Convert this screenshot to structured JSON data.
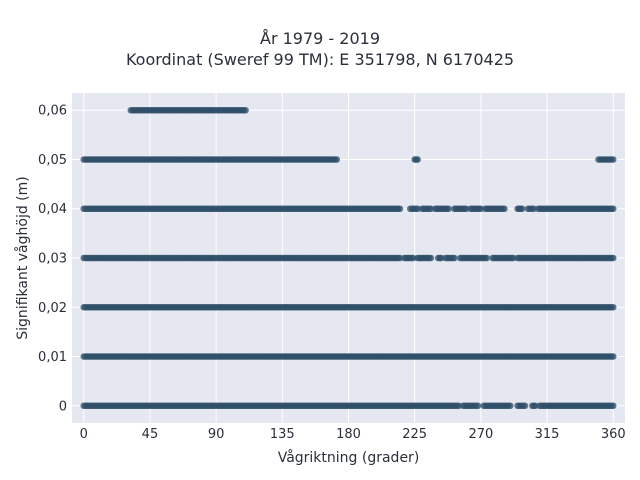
{
  "chart_data": {
    "type": "scatter",
    "title": "År 1979 - 2019",
    "subtitle": "Koordinat (Sweref 99 TM): E 351798, N 6170425",
    "xlabel": "Vågriktning (grader)",
    "ylabel": "Signifikant våghöjd (m)",
    "xlim": [
      -8,
      368
    ],
    "ylim": [
      -0.0035,
      0.0635
    ],
    "xticks": [
      0,
      45,
      90,
      135,
      180,
      225,
      270,
      315,
      360
    ],
    "xtick_labels": [
      "0",
      "45",
      "90",
      "135",
      "180",
      "225",
      "270",
      "315",
      "360"
    ],
    "yticks": [
      0,
      0.01,
      0.02,
      0.03,
      0.04,
      0.05,
      0.06
    ],
    "ytick_labels": [
      "0",
      "0,01",
      "0,02",
      "0,03",
      "0,04",
      "0,05",
      "0,06"
    ],
    "grid": true,
    "marker_color": "#2f4f6a",
    "background_color": "#e5e8f0",
    "bands": [
      {
        "y": 0.0,
        "segments": [
          [
            0,
            255
          ],
          [
            258,
            268
          ],
          [
            272,
            290
          ],
          [
            295,
            300
          ],
          [
            305,
            307
          ],
          [
            310,
            360
          ]
        ]
      },
      {
        "y": 0.01,
        "segments": [
          [
            0,
            360
          ]
        ]
      },
      {
        "y": 0.02,
        "segments": [
          [
            0,
            360
          ]
        ]
      },
      {
        "y": 0.03,
        "segments": [
          [
            0,
            215
          ],
          [
            218,
            224
          ],
          [
            227,
            236
          ],
          [
            241,
            243
          ],
          [
            246,
            252
          ],
          [
            256,
            274
          ],
          [
            278,
            292
          ],
          [
            295,
            360
          ]
        ]
      },
      {
        "y": 0.04,
        "segments": [
          [
            0,
            215
          ],
          [
            222,
            227
          ],
          [
            230,
            236
          ],
          [
            239,
            248
          ],
          [
            252,
            260
          ],
          [
            263,
            270
          ],
          [
            273,
            286
          ],
          [
            295,
            298
          ],
          [
            302,
            306
          ],
          [
            309,
            360
          ]
        ]
      },
      {
        "y": 0.05,
        "segments": [
          [
            0,
            172
          ],
          [
            225,
            227
          ],
          [
            350,
            360
          ]
        ]
      },
      {
        "y": 0.06,
        "segments": [
          [
            32,
            110
          ]
        ]
      }
    ]
  }
}
